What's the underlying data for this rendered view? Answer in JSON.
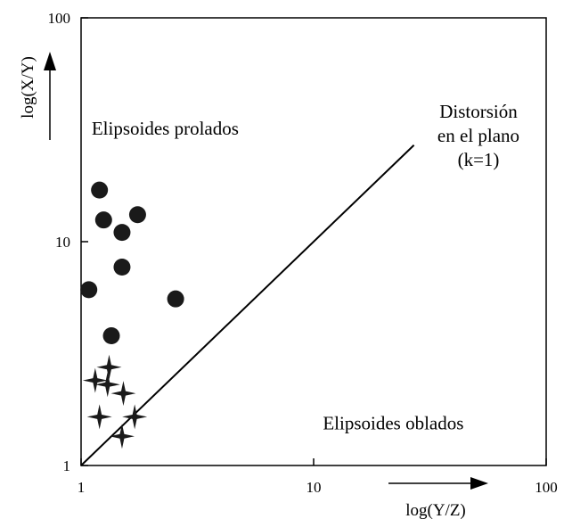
{
  "chart_data": {
    "type": "scatter",
    "title": "",
    "xlabel": "log(Y/Z)",
    "ylabel": "log(X/Y)",
    "xscale": "log",
    "yscale": "log",
    "xlim": [
      1,
      100
    ],
    "ylim": [
      1,
      100
    ],
    "xticks": [
      {
        "value": 1,
        "label": "1"
      },
      {
        "value": 10,
        "label": "10"
      },
      {
        "value": 100,
        "label": "100"
      }
    ],
    "yticks": [
      {
        "value": 1,
        "label": "1"
      },
      {
        "value": 10,
        "label": "10"
      },
      {
        "value": 100,
        "label": "100"
      }
    ],
    "grid": false,
    "reference_line": {
      "label": [
        "Distorsión",
        "en el plano",
        "(k=1)"
      ],
      "from": [
        1,
        1
      ],
      "to": [
        27,
        27
      ]
    },
    "region_labels": [
      {
        "text": "Elipsoides prolados",
        "x": 2.3,
        "y": 30
      },
      {
        "text": "Elipsoides oblados",
        "x": 22,
        "y": 1.45
      }
    ],
    "series": [
      {
        "marker": "circle",
        "points": [
          {
            "x": 1.2,
            "y": 17
          },
          {
            "x": 1.25,
            "y": 12.5
          },
          {
            "x": 1.75,
            "y": 13.2
          },
          {
            "x": 1.5,
            "y": 11
          },
          {
            "x": 1.5,
            "y": 7.7
          },
          {
            "x": 1.08,
            "y": 6.1
          },
          {
            "x": 2.55,
            "y": 5.55
          },
          {
            "x": 1.35,
            "y": 3.8
          }
        ]
      },
      {
        "marker": "star",
        "points": [
          {
            "x": 1.32,
            "y": 2.75
          },
          {
            "x": 1.15,
            "y": 2.4
          },
          {
            "x": 1.3,
            "y": 2.3
          },
          {
            "x": 1.52,
            "y": 2.1
          },
          {
            "x": 1.2,
            "y": 1.65
          },
          {
            "x": 1.7,
            "y": 1.65
          },
          {
            "x": 1.5,
            "y": 1.35
          }
        ]
      }
    ]
  }
}
